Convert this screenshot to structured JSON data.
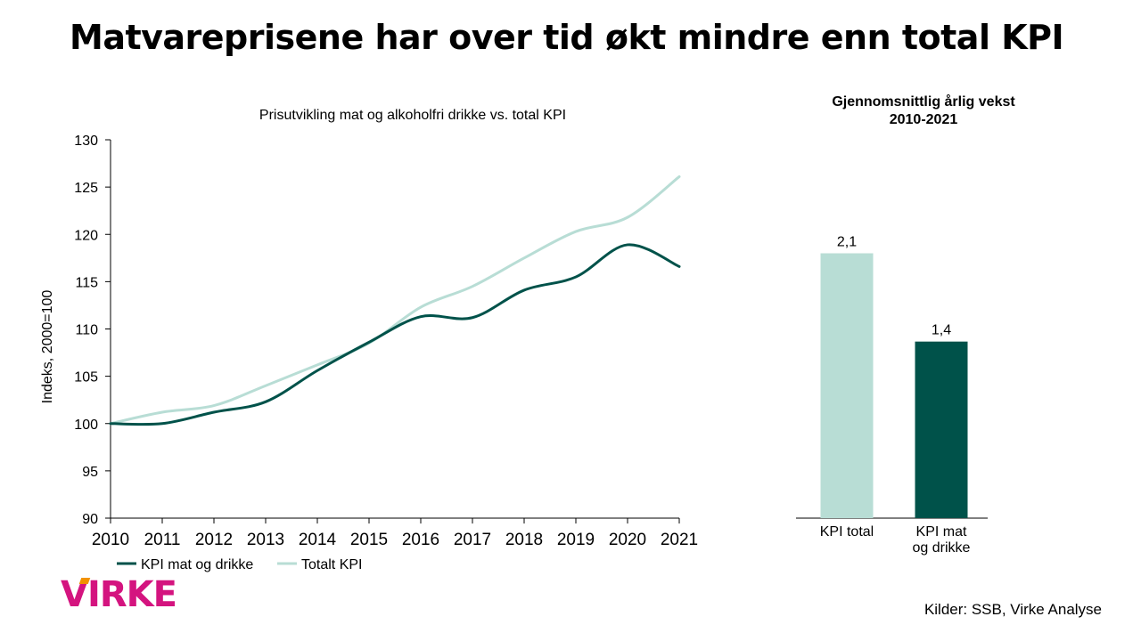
{
  "headline": "Matvareprisene har over tid økt mindre enn total KPI",
  "source": "Kilder: SSB, Virke Analyse",
  "logo_text": "VIRKE",
  "colors": {
    "food": "#00524a",
    "total": "#b8ddd5",
    "logo": "#d4147f",
    "logo_accent": "#f29200"
  },
  "chart_data": [
    {
      "type": "line",
      "title": "Prisutvikling mat og alkoholfri drikke vs. total KPI",
      "ylabel": "Indeks, 2000=100",
      "xlabel": "",
      "x": [
        2010,
        2011,
        2012,
        2013,
        2014,
        2015,
        2016,
        2017,
        2018,
        2019,
        2020,
        2021
      ],
      "yticks": [
        90,
        95,
        100,
        105,
        110,
        115,
        120,
        125,
        130
      ],
      "ylim": [
        90,
        130
      ],
      "legend": "bottom-left",
      "series": [
        {
          "name": "KPI mat og drikke",
          "color": "#00524a",
          "values": [
            100.0,
            100.0,
            101.2,
            102.3,
            105.6,
            108.6,
            111.3,
            111.2,
            114.1,
            115.5,
            118.9,
            116.6
          ]
        },
        {
          "name": "Totalt KPI",
          "color": "#b8ddd5",
          "values": [
            100.0,
            101.2,
            101.9,
            104.0,
            106.2,
            108.5,
            112.3,
            114.5,
            117.5,
            120.3,
            121.8,
            126.1
          ]
        }
      ]
    },
    {
      "type": "bar",
      "title": "Gjennomsnittlig årlig vekst\n2010-2021",
      "categories": [
        "KPI total",
        "KPI mat\nog drikke"
      ],
      "values": [
        2.1,
        1.4
      ],
      "value_labels": [
        "2,1",
        "1,4"
      ],
      "colors": [
        "#b8ddd5",
        "#00524a"
      ],
      "ylim": [
        0,
        3.0
      ]
    }
  ]
}
